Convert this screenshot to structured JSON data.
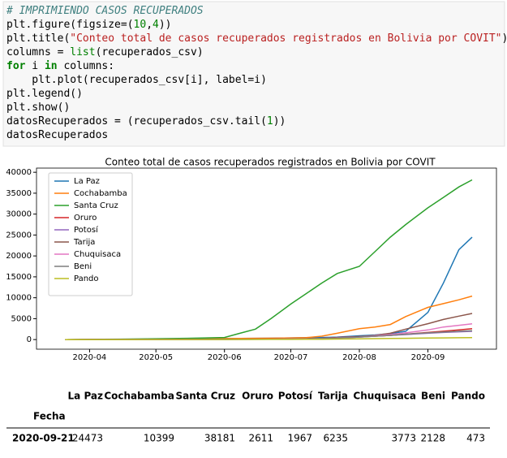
{
  "code": {
    "lines": [
      [
        "# IMPRIMIENDO CASOS RECUPERADOS"
      ],
      [
        "plt.figure(figsize=(",
        "10",
        ",",
        "4",
        "))"
      ],
      [
        "plt.title(",
        "\"Conteo total de casos recuperados registrados en Bolivia por COVIT\"",
        ")"
      ],
      [
        "columns = ",
        "list",
        "(recuperados_csv)"
      ],
      [
        "for",
        " i ",
        "in",
        " columns:"
      ],
      [
        "    plt.plot(recuperados_csv[i], label=i)"
      ],
      [
        "plt.legend()"
      ],
      [
        "plt.show()"
      ],
      [
        "datosRecuperados = (recuperados_csv.tail(",
        "1",
        "))"
      ],
      [
        "datosRecuperados"
      ]
    ]
  },
  "chart_data": {
    "type": "line",
    "title": "Conteo total de casos recuperados registrados en Bolivia por COVIT",
    "x": [
      "2020-03-21",
      "2020-04-01",
      "2020-04-15",
      "2020-05-01",
      "2020-05-15",
      "2020-06-01",
      "2020-06-08",
      "2020-06-15",
      "2020-06-22",
      "2020-07-01",
      "2020-07-08",
      "2020-07-15",
      "2020-07-22",
      "2020-08-01",
      "2020-08-08",
      "2020-08-15",
      "2020-08-22",
      "2020-09-01",
      "2020-09-08",
      "2020-09-15",
      "2020-09-21"
    ],
    "xlim": [
      "2020-03-08",
      "2020-10-02"
    ],
    "xticks": [
      {
        "value": "2020-04-01",
        "label": "2020-04"
      },
      {
        "value": "2020-05-01",
        "label": "2020-05"
      },
      {
        "value": "2020-06-01",
        "label": "2020-06"
      },
      {
        "value": "2020-07-01",
        "label": "2020-07"
      },
      {
        "value": "2020-08-01",
        "label": "2020-08"
      },
      {
        "value": "2020-09-01",
        "label": "2020-09"
      }
    ],
    "ylim": [
      -2300,
      41000
    ],
    "yticks": [
      0,
      5000,
      10000,
      15000,
      20000,
      25000,
      30000,
      35000,
      40000
    ],
    "legend": "upper left",
    "series": [
      {
        "name": "La Paz",
        "color": "#1f77b4",
        "values": [
          0,
          20,
          50,
          100,
          150,
          250,
          280,
          300,
          330,
          400,
          450,
          500,
          600,
          900,
          1100,
          1400,
          2000,
          6500,
          13500,
          21500,
          24473
        ]
      },
      {
        "name": "Cochabamba",
        "color": "#ff7f0e",
        "values": [
          0,
          10,
          30,
          80,
          150,
          250,
          280,
          300,
          330,
          400,
          450,
          800,
          1500,
          2600,
          3000,
          3600,
          5500,
          7700,
          8600,
          9500,
          10399
        ]
      },
      {
        "name": "Santa Cruz",
        "color": "#2ca02c",
        "values": [
          0,
          50,
          100,
          200,
          300,
          500,
          1500,
          2500,
          5000,
          8500,
          11000,
          13500,
          15800,
          17500,
          21000,
          24500,
          27500,
          31500,
          34000,
          36500,
          38181
        ]
      },
      {
        "name": "Oruro",
        "color": "#d62728",
        "values": [
          0,
          5,
          10,
          20,
          40,
          80,
          90,
          100,
          120,
          150,
          200,
          300,
          500,
          700,
          800,
          1000,
          1300,
          1700,
          2000,
          2300,
          2611
        ]
      },
      {
        "name": "Potosí",
        "color": "#9467bd",
        "values": [
          0,
          5,
          10,
          20,
          30,
          50,
          60,
          70,
          90,
          120,
          150,
          250,
          400,
          600,
          800,
          1000,
          1200,
          1500,
          1700,
          1850,
          1967
        ]
      },
      {
        "name": "Tarija",
        "color": "#8c564b",
        "values": [
          0,
          5,
          10,
          20,
          30,
          40,
          50,
          60,
          80,
          100,
          150,
          250,
          400,
          700,
          1000,
          1500,
          2500,
          3800,
          4800,
          5600,
          6235
        ]
      },
      {
        "name": "Chuquisaca",
        "color": "#e377c2",
        "values": [
          0,
          5,
          10,
          20,
          30,
          50,
          60,
          70,
          90,
          120,
          160,
          250,
          400,
          600,
          900,
          1200,
          1600,
          2300,
          3000,
          3400,
          3773
        ]
      },
      {
        "name": "Beni",
        "color": "#7f7f7f",
        "values": [
          0,
          0,
          5,
          10,
          20,
          40,
          50,
          60,
          80,
          100,
          150,
          250,
          400,
          600,
          800,
          1000,
          1300,
          1600,
          1800,
          2000,
          2128
        ]
      },
      {
        "name": "Pando",
        "color": "#bcbd22",
        "values": [
          0,
          0,
          0,
          5,
          10,
          20,
          25,
          30,
          40,
          50,
          60,
          80,
          120,
          180,
          220,
          260,
          300,
          360,
          400,
          440,
          473
        ]
      }
    ]
  },
  "table": {
    "columns": [
      "La Paz",
      "Cochabamba",
      "Santa Cruz",
      "Oruro",
      "Potosí",
      "Tarija",
      "Chuquisaca",
      "Beni",
      "Pando"
    ],
    "index_name": "Fecha",
    "rows": [
      {
        "index": "2020-09-21",
        "values": [
          24473,
          10399,
          38181,
          2611,
          1967,
          6235,
          3773,
          2128,
          473
        ]
      }
    ]
  }
}
